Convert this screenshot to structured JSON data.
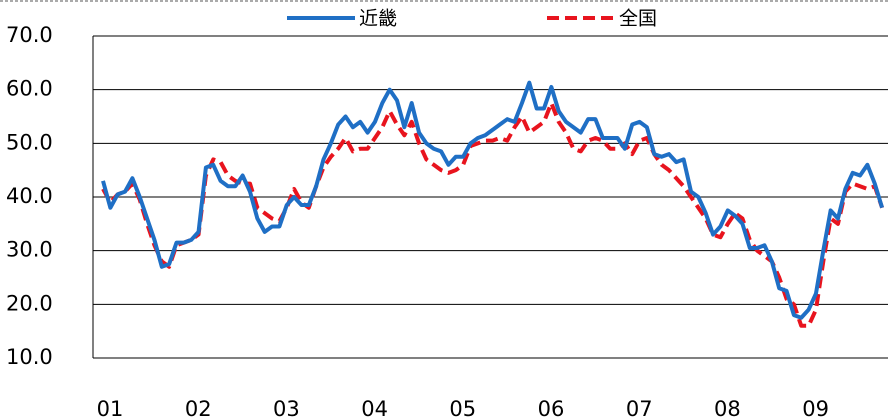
{
  "chart_data": {
    "type": "line",
    "categories": [
      "01",
      null,
      null,
      null,
      null,
      null,
      null,
      null,
      null,
      null,
      null,
      null,
      "02",
      null,
      null,
      null,
      null,
      null,
      null,
      null,
      null,
      null,
      null,
      null,
      "03",
      null,
      null,
      null,
      null,
      null,
      null,
      null,
      null,
      null,
      null,
      null,
      "04",
      null,
      null,
      null,
      null,
      null,
      null,
      null,
      null,
      null,
      null,
      null,
      "05",
      null,
      null,
      null,
      null,
      null,
      null,
      null,
      null,
      null,
      null,
      null,
      "06",
      null,
      null,
      null,
      null,
      null,
      null,
      null,
      null,
      null,
      null,
      null,
      "07",
      null,
      null,
      null,
      null,
      null,
      null,
      null,
      null,
      null,
      null,
      null,
      "08",
      null,
      null,
      null,
      null,
      null,
      null,
      null,
      null,
      null,
      null,
      null,
      "09",
      null,
      null,
      null,
      null,
      null,
      null,
      null,
      null,
      null,
      null
    ],
    "series": [
      {
        "name": "近畿",
        "color": "#1f6fc5",
        "dash": false,
        "values": [
          43,
          38,
          40.5,
          41,
          43.5,
          40,
          36,
          32,
          27,
          27.5,
          31.5,
          31.5,
          32,
          33.5,
          45.5,
          46,
          43,
          42,
          42,
          44,
          41,
          36,
          33.5,
          34.5,
          34.5,
          38.5,
          40,
          38.5,
          38.5,
          42,
          47,
          50,
          53.5,
          55,
          53,
          54,
          52,
          54,
          57.5,
          60,
          58,
          53,
          57.5,
          52,
          50,
          49,
          48.5,
          46,
          47.5,
          47.5,
          50,
          51,
          51.5,
          52.5,
          53.5,
          54.5,
          54,
          57.5,
          61.3,
          56.5,
          56.5,
          60.5,
          56,
          54,
          53,
          52,
          54.5,
          54.5,
          51,
          51,
          51,
          49,
          53.5,
          54,
          53,
          48,
          47.5,
          48,
          46.5,
          47,
          41,
          40,
          37,
          33,
          34.5,
          37.5,
          36.5,
          35,
          30.5,
          30.5,
          31,
          28,
          23,
          22.5,
          18,
          17.5,
          19,
          22,
          30,
          37.5,
          36,
          41.5,
          44.5,
          44,
          46,
          42.5,
          38
        ]
      },
      {
        "name": "全国",
        "color": "#e8141e",
        "dash": true,
        "values": [
          41.5,
          39,
          40.5,
          41,
          42.5,
          39.5,
          35,
          31,
          28,
          27,
          31,
          31.5,
          32,
          33,
          44,
          47,
          46.5,
          44,
          43,
          42.5,
          42.5,
          38,
          37,
          36,
          35.5,
          38,
          41.5,
          39,
          38,
          42,
          45.5,
          47.5,
          49,
          51,
          48.5,
          49,
          49,
          51,
          53,
          56,
          53.5,
          51.5,
          54,
          50,
          47,
          46,
          45,
          44.5,
          45,
          46,
          49.5,
          50,
          50.5,
          50.5,
          51,
          50.5,
          53,
          55,
          52,
          53,
          54,
          57.5,
          54,
          52,
          49,
          48.5,
          50.5,
          51,
          50.5,
          49,
          49,
          50,
          48,
          50.5,
          51,
          48,
          46,
          45,
          43.5,
          42,
          40,
          38,
          36,
          33,
          32.5,
          35,
          37,
          36,
          32,
          30,
          29,
          28,
          25,
          21,
          20,
          16,
          16,
          19,
          28,
          36,
          35,
          41,
          42.5,
          42,
          41.5,
          42,
          38
        ]
      }
    ],
    "ylim": [
      10,
      70
    ],
    "yticks": [
      {
        "value": 10,
        "label": "10.0"
      },
      {
        "value": 20,
        "label": "20.0"
      },
      {
        "value": 30,
        "label": "30.0"
      },
      {
        "value": 40,
        "label": "40.0"
      },
      {
        "value": 50,
        "label": "50.0"
      },
      {
        "value": 60,
        "label": "60.0"
      },
      {
        "value": 70,
        "label": "70.0"
      }
    ],
    "grid": true,
    "legend": "top"
  }
}
